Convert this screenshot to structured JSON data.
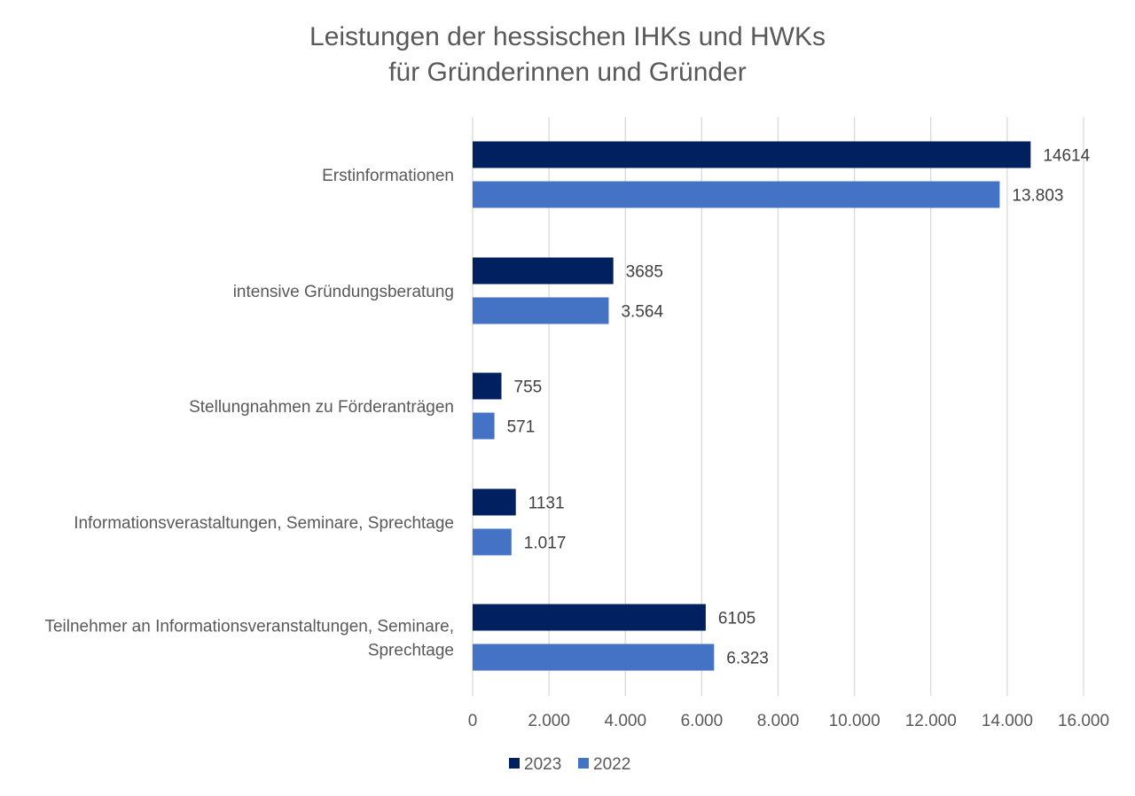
{
  "chart_data": {
    "type": "bar",
    "orientation": "horizontal",
    "title": [
      "Leistungen der hessischen IHKs und HWKs",
      "für Gründerinnen und Gründer"
    ],
    "categories": [
      [
        "Erstinformationen"
      ],
      [
        "intensive Gründungsberatung"
      ],
      [
        "Stellungnahmen zu Förderanträgen"
      ],
      [
        "Informationsverastaltungen, Seminare, Sprechtage"
      ],
      [
        "Teilnehmer an Informationsveranstaltungen, Seminare,",
        "Sprechtage"
      ]
    ],
    "series": [
      {
        "name": "2023",
        "color": "#002060",
        "values": [
          14614,
          3685,
          755,
          1131,
          6105
        ],
        "labels": [
          "14614",
          "3685",
          "755",
          "1131",
          "6105"
        ]
      },
      {
        "name": "2022",
        "color": "#4472C4",
        "values": [
          13803,
          3564,
          571,
          1017,
          6323
        ],
        "labels": [
          "13.803",
          "3.564",
          "571",
          "1.017",
          "6.323"
        ]
      }
    ],
    "xlim": [
      0,
      16000
    ],
    "xticks": [
      0,
      2000,
      4000,
      6000,
      8000,
      10000,
      12000,
      14000,
      16000
    ],
    "xtick_labels": [
      "0",
      "2.000",
      "4.000",
      "6.000",
      "8.000",
      "10.000",
      "12.000",
      "14.000",
      "16.000"
    ],
    "grid": "vertical",
    "legend_position": "bottom"
  }
}
